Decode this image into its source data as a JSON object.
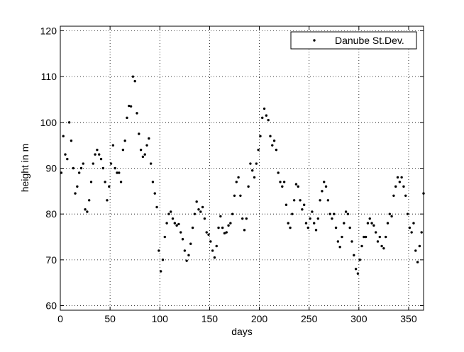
{
  "chart_data": {
    "type": "scatter",
    "xlabel": "days",
    "ylabel": "height in m",
    "xlim": [
      0,
      365
    ],
    "ylim": [
      59,
      121
    ],
    "xticks": [
      0,
      50,
      100,
      150,
      200,
      250,
      300,
      350
    ],
    "yticks": [
      60,
      70,
      80,
      90,
      100,
      110,
      120
    ],
    "grid": true,
    "legend": "top-right",
    "series": [
      {
        "name": "Danube St.Dev.",
        "color": "#000000",
        "x": [
          1,
          3,
          5,
          7,
          9,
          11,
          13,
          15,
          17,
          19,
          21,
          23,
          25,
          27,
          29,
          31,
          33,
          35,
          37,
          39,
          41,
          43,
          45,
          47,
          49,
          51,
          53,
          55,
          57,
          59,
          61,
          63,
          65,
          67,
          69,
          71,
          73,
          75,
          77,
          79,
          81,
          83,
          85,
          87,
          89,
          91,
          93,
          95,
          97,
          99,
          101,
          103,
          105,
          107,
          109,
          111,
          113,
          115,
          117,
          119,
          121,
          123,
          125,
          127,
          129,
          131,
          133,
          135,
          137,
          139,
          141,
          143,
          145,
          147,
          149,
          151,
          153,
          155,
          157,
          159,
          161,
          163,
          165,
          167,
          169,
          171,
          173,
          175,
          177,
          179,
          181,
          183,
          185,
          187,
          189,
          191,
          193,
          195,
          197,
          199,
          201,
          203,
          205,
          207,
          209,
          211,
          213,
          215,
          217,
          219,
          221,
          223,
          225,
          227,
          229,
          231,
          233,
          235,
          237,
          239,
          241,
          243,
          245,
          247,
          249,
          251,
          253,
          255,
          257,
          259,
          261,
          263,
          265,
          267,
          269,
          271,
          273,
          275,
          277,
          279,
          281,
          283,
          285,
          287,
          289,
          291,
          293,
          295,
          297,
          299,
          301,
          303,
          305,
          307,
          309,
          311,
          313,
          315,
          317,
          319,
          321,
          323,
          325,
          327,
          329,
          331,
          333,
          335,
          337,
          339,
          341,
          343,
          345,
          347,
          349,
          351,
          353,
          355,
          357,
          359,
          361,
          363,
          365
        ],
        "values": [
          89,
          97,
          93,
          92,
          100,
          96,
          90,
          84.5,
          86,
          89,
          90,
          91,
          81,
          80.5,
          83,
          87,
          91,
          93,
          94,
          93,
          92,
          90,
          87,
          83,
          86,
          91,
          95,
          90,
          89,
          89,
          87,
          94,
          96,
          101,
          103.6,
          103.5,
          110,
          109,
          102,
          97.5,
          94,
          92.5,
          93,
          95,
          96.5,
          91,
          87,
          84.5,
          81.5,
          72,
          67.5,
          70,
          75,
          78,
          80,
          80.5,
          79,
          78,
          77.5,
          77.8,
          76,
          74.5,
          72,
          69.8,
          71,
          73.5,
          77,
          80,
          82.7,
          81,
          80.5,
          81.5,
          79,
          76,
          75.5,
          74,
          72,
          70.5,
          73,
          77,
          79.5,
          77,
          75.8,
          76,
          77.5,
          78,
          80,
          84,
          87,
          88,
          84,
          79,
          76.5,
          79,
          86,
          91,
          89.5,
          88,
          91,
          94,
          97,
          101,
          103,
          101.5,
          100.5,
          97,
          95,
          96,
          94,
          89,
          87,
          86,
          87,
          82,
          78,
          77,
          80,
          83,
          86.5,
          86,
          83,
          81,
          82,
          78,
          77,
          79,
          80.5,
          78,
          76.5,
          79,
          83,
          85,
          87,
          86,
          83,
          80,
          79,
          80,
          77,
          74,
          72.8,
          75,
          78,
          80.5,
          80,
          77,
          74,
          71,
          68,
          67,
          70,
          73,
          75,
          75,
          78,
          79,
          78,
          77.5,
          76,
          74,
          75,
          73,
          72.5,
          75,
          78,
          80,
          79.5,
          84,
          86,
          88,
          87,
          88,
          86,
          84,
          80,
          77,
          76,
          78,
          72,
          69.5,
          73,
          76,
          84.5
        ]
      }
    ]
  }
}
